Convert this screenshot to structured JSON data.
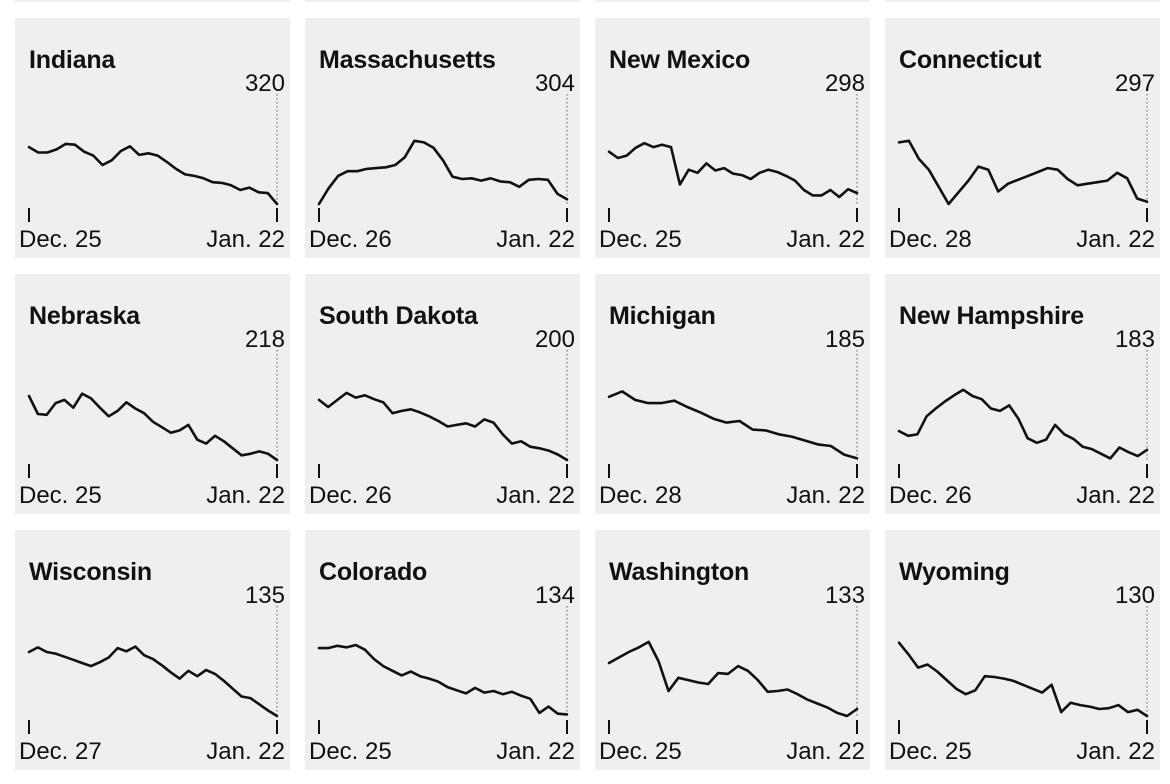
{
  "chart_data": [
    {
      "type": "line",
      "title": "Indiana",
      "value_label": "320",
      "x_start_label": "Dec. 25",
      "x_end_label": "Jan. 22",
      "values": [
        0.73,
        0.66,
        0.66,
        0.7,
        0.77,
        0.76,
        0.67,
        0.62,
        0.5,
        0.56,
        0.68,
        0.74,
        0.63,
        0.65,
        0.62,
        0.54,
        0.45,
        0.38,
        0.36,
        0.33,
        0.28,
        0.27,
        0.24,
        0.18,
        0.21,
        0.15,
        0.14,
        0.0
      ]
    },
    {
      "type": "line",
      "title": "Massachusetts",
      "value_label": "304",
      "x_start_label": "Dec. 26",
      "x_end_label": "Jan. 22",
      "values": [
        0.0,
        0.2,
        0.36,
        0.42,
        0.42,
        0.45,
        0.46,
        0.47,
        0.5,
        0.6,
        0.81,
        0.79,
        0.72,
        0.56,
        0.35,
        0.32,
        0.33,
        0.3,
        0.33,
        0.29,
        0.28,
        0.22,
        0.31,
        0.32,
        0.31,
        0.13,
        0.06
      ]
    },
    {
      "type": "line",
      "title": "New Mexico",
      "value_label": "298",
      "x_start_label": "Dec. 25",
      "x_end_label": "Jan. 22",
      "values": [
        0.67,
        0.59,
        0.62,
        0.72,
        0.78,
        0.73,
        0.76,
        0.73,
        0.25,
        0.44,
        0.4,
        0.52,
        0.43,
        0.46,
        0.39,
        0.37,
        0.32,
        0.4,
        0.44,
        0.41,
        0.36,
        0.3,
        0.18,
        0.11,
        0.11,
        0.18,
        0.09,
        0.19,
        0.14
      ]
    },
    {
      "type": "line",
      "title": "Connecticut",
      "value_label": "297",
      "x_start_label": "Dec. 28",
      "x_end_label": "Jan. 22",
      "values": [
        0.79,
        0.81,
        0.58,
        0.44,
        0.22,
        0.0,
        0.15,
        0.3,
        0.48,
        0.44,
        0.16,
        0.26,
        0.31,
        0.36,
        0.41,
        0.46,
        0.44,
        0.32,
        0.24,
        0.26,
        0.28,
        0.3,
        0.4,
        0.33,
        0.07,
        0.03
      ]
    },
    {
      "type": "line",
      "title": "Nebraska",
      "value_label": "218",
      "x_start_label": "Dec. 25",
      "x_end_label": "Jan. 22",
      "values": [
        0.82,
        0.59,
        0.58,
        0.73,
        0.77,
        0.67,
        0.85,
        0.79,
        0.67,
        0.56,
        0.63,
        0.74,
        0.66,
        0.6,
        0.49,
        0.42,
        0.35,
        0.38,
        0.45,
        0.26,
        0.21,
        0.31,
        0.24,
        0.15,
        0.06,
        0.08,
        0.11,
        0.08,
        0.0
      ]
    },
    {
      "type": "line",
      "title": "South Dakota",
      "value_label": "200",
      "x_start_label": "Dec. 26",
      "x_end_label": "Jan. 22",
      "values": [
        0.77,
        0.68,
        0.77,
        0.86,
        0.8,
        0.83,
        0.78,
        0.74,
        0.6,
        0.63,
        0.65,
        0.61,
        0.56,
        0.5,
        0.43,
        0.45,
        0.47,
        0.43,
        0.52,
        0.48,
        0.33,
        0.21,
        0.24,
        0.17,
        0.15,
        0.12,
        0.07,
        0.0
      ]
    },
    {
      "type": "line",
      "title": "Michigan",
      "value_label": "185",
      "x_start_label": "Dec. 28",
      "x_end_label": "Jan. 22",
      "values": [
        0.81,
        0.88,
        0.77,
        0.73,
        0.73,
        0.76,
        0.68,
        0.61,
        0.53,
        0.48,
        0.5,
        0.39,
        0.38,
        0.33,
        0.3,
        0.25,
        0.2,
        0.18,
        0.07,
        0.02
      ]
    },
    {
      "type": "line",
      "title": "New Hampshire",
      "value_label": "183",
      "x_start_label": "Dec. 26",
      "x_end_label": "Jan. 22",
      "values": [
        0.37,
        0.31,
        0.33,
        0.56,
        0.66,
        0.75,
        0.83,
        0.9,
        0.82,
        0.78,
        0.66,
        0.63,
        0.7,
        0.53,
        0.28,
        0.22,
        0.26,
        0.45,
        0.33,
        0.27,
        0.17,
        0.14,
        0.08,
        0.02,
        0.16,
        0.1,
        0.05,
        0.13
      ]
    },
    {
      "type": "line",
      "title": "Wisconsin",
      "value_label": "135",
      "x_start_label": "Dec. 27",
      "x_end_label": "Jan. 22",
      "values": [
        0.82,
        0.88,
        0.82,
        0.8,
        0.76,
        0.72,
        0.68,
        0.64,
        0.69,
        0.75,
        0.87,
        0.83,
        0.89,
        0.78,
        0.73,
        0.65,
        0.56,
        0.48,
        0.58,
        0.51,
        0.59,
        0.54,
        0.45,
        0.35,
        0.25,
        0.23,
        0.15,
        0.07,
        0.0
      ]
    },
    {
      "type": "line",
      "title": "Colorado",
      "value_label": "134",
      "x_start_label": "Dec. 25",
      "x_end_label": "Jan. 22",
      "values": [
        0.87,
        0.87,
        0.9,
        0.88,
        0.91,
        0.85,
        0.73,
        0.64,
        0.58,
        0.52,
        0.57,
        0.51,
        0.48,
        0.44,
        0.37,
        0.33,
        0.29,
        0.36,
        0.3,
        0.32,
        0.28,
        0.31,
        0.26,
        0.22,
        0.04,
        0.12,
        0.03,
        0.02
      ]
    },
    {
      "type": "line",
      "title": "Washington",
      "value_label": "133",
      "x_start_label": "Dec. 25",
      "x_end_label": "Jan. 22",
      "values": [
        0.68,
        0.75,
        0.82,
        0.88,
        0.95,
        0.7,
        0.32,
        0.49,
        0.46,
        0.43,
        0.41,
        0.55,
        0.54,
        0.64,
        0.58,
        0.46,
        0.31,
        0.32,
        0.34,
        0.28,
        0.21,
        0.16,
        0.11,
        0.04,
        0.0,
        0.09
      ]
    },
    {
      "type": "line",
      "title": "Wyoming",
      "value_label": "130",
      "x_start_label": "Dec. 25",
      "x_end_label": "Jan. 22",
      "values": [
        0.94,
        0.79,
        0.62,
        0.66,
        0.57,
        0.46,
        0.35,
        0.28,
        0.33,
        0.51,
        0.5,
        0.48,
        0.45,
        0.4,
        0.35,
        0.3,
        0.4,
        0.05,
        0.17,
        0.14,
        0.12,
        0.09,
        0.1,
        0.14,
        0.05,
        0.08,
        0.0
      ]
    }
  ]
}
